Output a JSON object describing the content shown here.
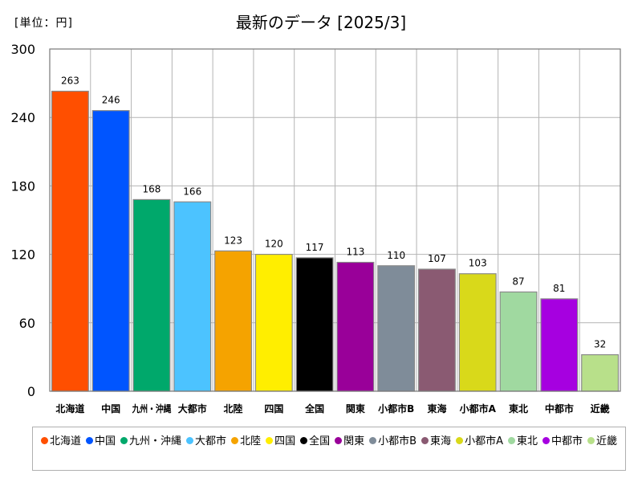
{
  "unit_label": "[単位：円]",
  "chart_data": {
    "type": "bar",
    "title": "最新のデータ [2025/3]",
    "categories": [
      "北海道",
      "中国",
      "九州・沖縄",
      "大都市",
      "北陸",
      "四国",
      "全国",
      "関東",
      "小都市B",
      "東海",
      "小都市A",
      "東北",
      "中都市",
      "近畿"
    ],
    "values": [
      263,
      246,
      168,
      166,
      123,
      120,
      117,
      113,
      110,
      107,
      103,
      87,
      81,
      32
    ],
    "colors": [
      "#ff4f00",
      "#0055ff",
      "#00a86b",
      "#4cc3ff",
      "#f5a300",
      "#ffee00",
      "#000000",
      "#990099",
      "#7f8c99",
      "#8a5a72",
      "#d9d91a",
      "#a0d9a0",
      "#a600e0",
      "#b8e08a"
    ],
    "ylim": [
      0,
      300
    ],
    "yticks": [
      0,
      60,
      120,
      180,
      240,
      300
    ],
    "grid": true,
    "legend_position": "bottom",
    "xlabel": "",
    "ylabel": ""
  }
}
